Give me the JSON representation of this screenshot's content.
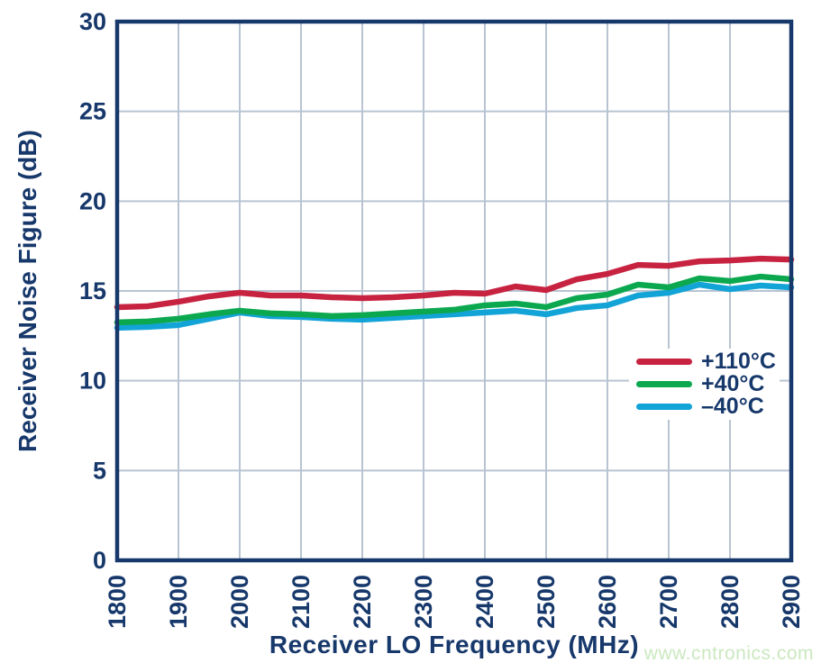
{
  "page": {
    "watermark_text": "www.cntronics.com",
    "watermark_color": "#cbe8c0",
    "background_color": "#ffffff"
  },
  "chart_data": {
    "type": "line",
    "title": "",
    "xlabel": "Receiver LO Frequency (MHz)",
    "ylabel": "Receiver Noise Figure (dB)",
    "xlim": [
      1800,
      2900
    ],
    "ylim": [
      0,
      30
    ],
    "x_ticks": [
      1800,
      1900,
      2000,
      2100,
      2200,
      2300,
      2400,
      2500,
      2600,
      2700,
      2800,
      2900
    ],
    "y_ticks": [
      0,
      5,
      10,
      15,
      20,
      25,
      30
    ],
    "grid": true,
    "legend_position": "inside-right",
    "axis_color": "#17386b",
    "grid_color": "#b9c4d2",
    "x": [
      1800,
      1850,
      1900,
      1950,
      2000,
      2050,
      2100,
      2150,
      2200,
      2250,
      2300,
      2350,
      2400,
      2450,
      2500,
      2550,
      2600,
      2650,
      2700,
      2750,
      2800,
      2850,
      2900
    ],
    "series": [
      {
        "name": "+110°C",
        "color": "#c72340",
        "values": [
          14.1,
          14.15,
          14.4,
          14.7,
          14.9,
          14.75,
          14.75,
          14.65,
          14.6,
          14.65,
          14.75,
          14.9,
          14.85,
          15.25,
          15.05,
          15.65,
          15.95,
          16.45,
          16.4,
          16.65,
          16.7,
          16.8,
          16.75
        ]
      },
      {
        "name": "+40°C",
        "color": "#0ca84f",
        "values": [
          13.25,
          13.3,
          13.45,
          13.7,
          13.9,
          13.75,
          13.7,
          13.6,
          13.65,
          13.75,
          13.85,
          13.95,
          14.2,
          14.3,
          14.1,
          14.6,
          14.8,
          15.35,
          15.2,
          15.7,
          15.55,
          15.8,
          15.65
        ]
      },
      {
        "name": "–40°C",
        "color": "#12a3d7",
        "values": [
          12.95,
          13.0,
          13.1,
          13.45,
          13.8,
          13.6,
          13.55,
          13.45,
          13.4,
          13.5,
          13.6,
          13.7,
          13.8,
          13.9,
          13.7,
          14.05,
          14.2,
          14.75,
          14.9,
          15.35,
          15.1,
          15.3,
          15.2
        ]
      }
    ]
  }
}
